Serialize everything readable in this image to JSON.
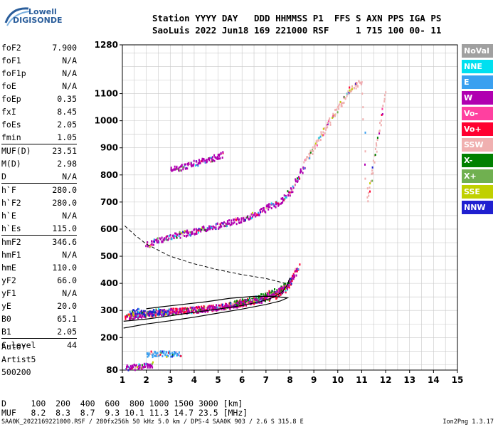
{
  "logo": {
    "line1": "Lowell",
    "line2": "DIGISONDE"
  },
  "header": {
    "line1": "Station YYYY DAY   DDD HHMMSS P1  FFS S AXN PPS IGA PS",
    "line2": "SaoLuis 2022 Jun18 169 221000 RSF     1 715 100 00- 11"
  },
  "params": [
    {
      "label": "foF2",
      "value": "7.900"
    },
    {
      "label": "foF1",
      "value": "N/A"
    },
    {
      "label": "foF1p",
      "value": "N/A"
    },
    {
      "label": "foE",
      "value": "N/A"
    },
    {
      "label": "foEp",
      "value": "0.35"
    },
    {
      "label": "fxI",
      "value": "8.45"
    },
    {
      "label": "foEs",
      "value": "2.05"
    },
    {
      "label": "fmin",
      "value": "1.05"
    },
    {
      "label": "MUF(D)",
      "value": "23.51",
      "sep": true
    },
    {
      "label": "M(D)",
      "value": "2.98"
    },
    {
      "label": "D",
      "value": "N/A"
    },
    {
      "label": "h`F",
      "value": "280.0",
      "sep": true
    },
    {
      "label": "h`F2",
      "value": "280.0"
    },
    {
      "label": "h`E",
      "value": "N/A"
    },
    {
      "label": "h`Es",
      "value": "115.0"
    },
    {
      "label": "hmF2",
      "value": "346.6",
      "sep": true
    },
    {
      "label": "hmF1",
      "value": "N/A"
    },
    {
      "label": "hmE",
      "value": "110.0"
    },
    {
      "label": "yF2",
      "value": "66.0"
    },
    {
      "label": "yF1",
      "value": "N/A"
    },
    {
      "label": "yE",
      "value": "20.0"
    },
    {
      "label": "B0",
      "value": "65.1"
    },
    {
      "label": "B1",
      "value": "2.05"
    },
    {
      "label": "C-level",
      "value": "44",
      "sep": true
    }
  ],
  "auto": {
    "line1": "Auto:",
    "line2": "Artist5",
    "line3": "500200"
  },
  "legend": [
    {
      "label": "NoVal",
      "color": "#a0a0a0"
    },
    {
      "label": "NNE",
      "color": "#00e0f0"
    },
    {
      "label": "E",
      "color": "#3aa0f0"
    },
    {
      "label": "W",
      "color": "#b000b0"
    },
    {
      "label": "Vo-",
      "color": "#ff40a0"
    },
    {
      "label": "Vo+",
      "color": "#ff0030"
    },
    {
      "label": "SSW",
      "color": "#f0b0b0"
    },
    {
      "label": "X-",
      "color": "#008000"
    },
    {
      "label": "X+",
      "color": "#70b050"
    },
    {
      "label": "SSE",
      "color": "#c0d000"
    },
    {
      "label": "NNW",
      "color": "#2020d0"
    }
  ],
  "footer": {
    "d_row": "D     100  200  400  600  800 1000 1500 3000 [km]",
    "muf_row": "MUF   8.2  8.3  8.7  9.3 10.1 11.3 14.7 23.5 [MHz]",
    "file_row": "SAA0K_2022169221000.RSF / 280fx256h 50 kHz 5.0 km / DPS-4 SAA0K 903 / 2.6 S 315.8 E",
    "version": "Ion2Png 1.3.17"
  },
  "chart_data": {
    "type": "scatter",
    "xlim": [
      1,
      15
    ],
    "ylim": [
      80,
      1280
    ],
    "x_ticks": [
      1,
      2,
      3,
      4,
      5,
      6,
      7,
      8,
      9,
      10,
      11,
      12,
      13,
      14,
      15
    ],
    "y_ticks": [
      80,
      200,
      300,
      400,
      500,
      600,
      700,
      800,
      900,
      1000,
      1100,
      1280
    ],
    "grid": true,
    "scaled_profile": [
      [
        1.05,
        235
      ],
      [
        2,
        250
      ],
      [
        3,
        262
      ],
      [
        4,
        275
      ],
      [
        5,
        290
      ],
      [
        6,
        305
      ],
      [
        7,
        322
      ],
      [
        7.6,
        335
      ],
      [
        7.9,
        346.6
      ],
      [
        7.3,
        352
      ],
      [
        6.5,
        352
      ],
      [
        5.5,
        345
      ],
      [
        4.5,
        332
      ],
      [
        3.5,
        322
      ],
      [
        2.5,
        312
      ],
      [
        2,
        306
      ]
    ],
    "trace_curve": [
      [
        1.05,
        260
      ],
      [
        2,
        268
      ],
      [
        3,
        280
      ],
      [
        4,
        293
      ],
      [
        5,
        305
      ],
      [
        6,
        318
      ],
      [
        6.8,
        333
      ],
      [
        7.3,
        348
      ],
      [
        7.7,
        370
      ],
      [
        7.9,
        395
      ],
      [
        8.0,
        420
      ]
    ],
    "dashed_curve": [
      [
        1.1,
        612
      ],
      [
        1.5,
        580
      ],
      [
        2,
        545
      ],
      [
        3,
        500
      ],
      [
        4,
        472
      ],
      [
        5,
        450
      ],
      [
        6,
        432
      ],
      [
        7,
        418
      ],
      [
        7.8,
        400
      ]
    ],
    "traces": [
      {
        "name": "F2-O",
        "color": "#ff0030",
        "points": [
          [
            1.1,
            280
          ],
          [
            2,
            290
          ],
          [
            3,
            300
          ],
          [
            4,
            305
          ],
          [
            5,
            315
          ],
          [
            6,
            330
          ],
          [
            7,
            348
          ],
          [
            7.5,
            360
          ],
          [
            7.9,
            390
          ],
          [
            8.2,
            440
          ],
          [
            8.4,
            470
          ]
        ]
      },
      {
        "name": "F2-X",
        "color": "#008000",
        "points": [
          [
            5.5,
            325
          ],
          [
            6.3,
            340
          ],
          [
            7,
            360
          ],
          [
            7.5,
            380
          ],
          [
            7.9,
            400
          ]
        ]
      },
      {
        "name": "F2-W",
        "color": "#b000b0",
        "points": [
          [
            1.2,
            280
          ],
          [
            2.5,
            295
          ],
          [
            4,
            305
          ],
          [
            5.5,
            320
          ],
          [
            6.8,
            343
          ],
          [
            7.8,
            385
          ],
          [
            8.3,
            455
          ]
        ]
      },
      {
        "name": "NNW",
        "color": "#2020d0",
        "points": [
          [
            1.3,
            295
          ],
          [
            1.7,
            300
          ],
          [
            2,
            290
          ],
          [
            2.5,
            300
          ],
          [
            2.9,
            290
          ]
        ]
      },
      {
        "name": "2F2-W",
        "color": "#b000b0",
        "points": [
          [
            2,
            545
          ],
          [
            3,
            575
          ],
          [
            4,
            595
          ],
          [
            5,
            615
          ],
          [
            6,
            640
          ],
          [
            6.6,
            660
          ],
          [
            7,
            680
          ],
          [
            7.5,
            700
          ],
          [
            8,
            740
          ],
          [
            8.3,
            790
          ],
          [
            8.6,
            840
          ]
        ]
      },
      {
        "name": "3F2-W",
        "color": "#b000b0",
        "points": [
          [
            3,
            820
          ],
          [
            3.5,
            833
          ],
          [
            4,
            845
          ],
          [
            4.5,
            858
          ],
          [
            5,
            870
          ],
          [
            5.2,
            880
          ]
        ]
      },
      {
        "name": "Es-E",
        "color": "#3aa0f0",
        "points": [
          [
            2,
            140
          ],
          [
            2.5,
            145
          ],
          [
            3,
            143
          ],
          [
            3.4,
            142
          ]
        ]
      },
      {
        "name": "Es-W",
        "color": "#b000b0",
        "points": [
          [
            1.1,
            92
          ],
          [
            1.5,
            95
          ],
          [
            2,
            98
          ],
          [
            2.3,
            102
          ]
        ]
      },
      {
        "name": "spread-SSW",
        "color": "#f0b0b0",
        "points": [
          [
            8.6,
            850
          ],
          [
            9.5,
            980
          ],
          [
            10.5,
            1120
          ],
          [
            11,
            1150
          ],
          [
            11.2,
            700
          ],
          [
            12,
            1120
          ]
        ]
      }
    ]
  }
}
